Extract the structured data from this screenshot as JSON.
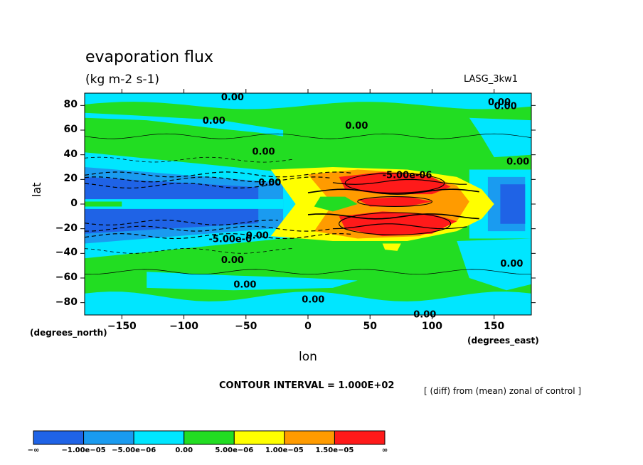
{
  "header": {
    "title": "evaporation flux",
    "units": "(kg m-2 s-1)",
    "model": "LASG_3kw1"
  },
  "footer": {
    "contour_interval": "CONTOUR INTERVAL = 1.000E+02",
    "description": "[ (diff) from (mean) zonal of control ]"
  },
  "colors": {
    "neg_large": "#1f63e6",
    "neg_mid": "#1a9bf0",
    "near_neg": "#00e6ff",
    "near_pos": "#22dd22",
    "pos_small": "#ffff00",
    "pos_mid": "#ff9b00",
    "pos_large": "#ff1a1a"
  },
  "chart_data": {
    "type": "heatmap",
    "title": "evaporation flux",
    "subtitle": "(kg m-2 s-1)",
    "xlabel": "lon",
    "ylabel": "lat",
    "xunits": "(degrees_east)",
    "yunits": "(degrees_north)",
    "xlim": [
      -180,
      180
    ],
    "ylim": [
      -90,
      90
    ],
    "xticks": [
      -150,
      -100,
      -50,
      0,
      50,
      100,
      150
    ],
    "xtick_labels": [
      "−150",
      "−100",
      "−50",
      "0",
      "50",
      "100",
      "150"
    ],
    "yticks": [
      80,
      60,
      40,
      20,
      0,
      -20,
      -40,
      -60,
      -80
    ],
    "ytick_labels": [
      "80",
      "60",
      "40",
      "20",
      "0",
      "−20",
      "−40",
      "−60",
      "−80"
    ],
    "colorbar": {
      "levels": [
        -1e-05,
        -5e-06,
        0,
        5e-06,
        1e-05,
        1.5e-05
      ],
      "labels": [
        "−∞",
        "−1.00e−05",
        "−5.00e−06",
        "0.00",
        "5.00e−06",
        "1.00e−05",
        "1.50e−05",
        "∞"
      ]
    },
    "contour_labels": [
      {
        "text": "0.00",
        "lon": -70,
        "lat": 87
      },
      {
        "text": "0.00",
        "lon": -85,
        "lat": 68
      },
      {
        "text": "0.00",
        "lon": 30,
        "lat": 64
      },
      {
        "text": "0.00",
        "lon": 145,
        "lat": 83
      },
      {
        "text": "0.00",
        "lon": 150,
        "lat": 80
      },
      {
        "text": "0.00",
        "lon": -45,
        "lat": 43
      },
      {
        "text": "0.00",
        "lon": 160,
        "lat": 35
      },
      {
        "text": "-5.00e-06",
        "lon": 60,
        "lat": 24
      },
      {
        "text": "0.00",
        "lon": -40,
        "lat": 18
      },
      {
        "text": "-5.00e-0",
        "lon": -80,
        "lat": -28
      },
      {
        "text": "0.00",
        "lon": -50,
        "lat": -25
      },
      {
        "text": "0.00",
        "lon": -70,
        "lat": -45
      },
      {
        "text": "0.00",
        "lon": -60,
        "lat": -65
      },
      {
        "text": "0.00",
        "lon": -5,
        "lat": -77
      },
      {
        "text": "0.00",
        "lon": 155,
        "lat": -48
      },
      {
        "text": "0.00",
        "lon": 85,
        "lat": -89
      }
    ]
  }
}
